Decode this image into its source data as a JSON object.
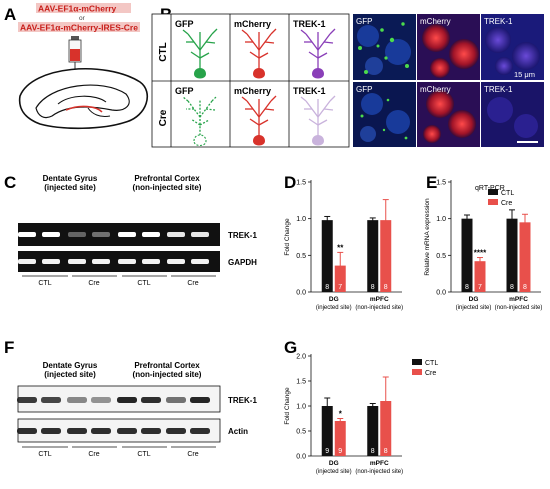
{
  "panels": {
    "A": {
      "letter": "A",
      "vector_ctl": "AAV-EF1α-mCherry",
      "or": "or",
      "vector_cre": "AAV-EF1α-mCherry-IRES-Cre"
    },
    "B": {
      "letter": "B",
      "rows": [
        "CTL",
        "Cre"
      ],
      "schematic_headers": [
        "GFP",
        "mCherry",
        "TREK-1"
      ],
      "image_headers": [
        "GFP",
        "mCherry",
        "TREK-1"
      ],
      "scale_bar": "15 μm",
      "colors": {
        "gfp": "#27a34a",
        "mcherry": "#d8322b",
        "trek": "#8a3fb8",
        "trek_faded": "#c9b3dc"
      }
    },
    "C": {
      "letter": "C",
      "group1": [
        "Dentate Gyrus",
        "(injected site)"
      ],
      "group2": [
        "Prefrontal Cortex",
        "(non-injected site)"
      ],
      "bands": [
        "TREK-1",
        "GAPDH"
      ],
      "lanes": [
        "CTL",
        "Cre",
        "CTL",
        "Cre"
      ]
    },
    "F": {
      "letter": "F",
      "group1": [
        "Dentate Gyrus",
        "(injected site)"
      ],
      "group2": [
        "Prefrontal Cortex",
        "(non-injected site)"
      ],
      "bands": [
        "TREK-1",
        "Actin"
      ],
      "lanes": [
        "CTL",
        "Cre",
        "CTL",
        "Cre"
      ]
    }
  },
  "chart_data": [
    {
      "id": "D",
      "type": "bar",
      "ylabel": "Fold Change",
      "ylim": [
        0,
        1.5
      ],
      "yticks": [
        "0.0",
        "0.5",
        "1.0",
        "1.5"
      ],
      "categories": [
        [
          "DG",
          "(injected site)"
        ],
        [
          "mPFC",
          "(non-injected site)"
        ]
      ],
      "series": [
        {
          "name": "CTL",
          "values": [
            0.98,
            0.98
          ],
          "errors": [
            0.05,
            0.03
          ],
          "n": [
            "8",
            "8"
          ],
          "color": "#111111"
        },
        {
          "name": "Cre",
          "values": [
            0.36,
            0.98
          ],
          "errors": [
            0.18,
            0.28
          ],
          "n": [
            "7",
            "8"
          ],
          "color": "#e8504b"
        }
      ],
      "significance": [
        {
          "text": "**",
          "category": 0,
          "series": 1
        }
      ],
      "legend": null
    },
    {
      "id": "E",
      "type": "bar",
      "ylabel": "Relative mRNA expression",
      "annotation": "qRT-PCR",
      "ylim": [
        0,
        1.5
      ],
      "yticks": [
        "0.0",
        "0.5",
        "1.0",
        "1.5"
      ],
      "categories": [
        [
          "DG",
          "(injected site)"
        ],
        [
          "mPFC",
          "(non-injected site)"
        ]
      ],
      "series": [
        {
          "name": "CTL",
          "values": [
            1.0,
            1.0
          ],
          "errors": [
            0.05,
            0.12
          ],
          "n": [
            "8",
            "8"
          ],
          "color": "#111111"
        },
        {
          "name": "Cre",
          "values": [
            0.42,
            0.95
          ],
          "errors": [
            0.05,
            0.11
          ],
          "n": [
            "7",
            "8"
          ],
          "color": "#e8504b"
        }
      ],
      "significance": [
        {
          "text": "****",
          "category": 0,
          "series": 1
        }
      ],
      "legend": "top-right"
    },
    {
      "id": "G",
      "type": "bar",
      "ylabel": "Fold Change",
      "ylim": [
        0,
        2.0
      ],
      "yticks": [
        "0.0",
        "0.5",
        "1.0",
        "1.5",
        "2.0"
      ],
      "categories": [
        [
          "DG",
          "(injected site)"
        ],
        [
          "mPFC",
          "(non-injected site)"
        ]
      ],
      "series": [
        {
          "name": "CTL",
          "values": [
            1.0,
            1.0
          ],
          "errors": [
            0.16,
            0.05
          ],
          "n": [
            "9",
            "8"
          ],
          "color": "#111111"
        },
        {
          "name": "Cre",
          "values": [
            0.7,
            1.1
          ],
          "errors": [
            0.05,
            0.48
          ],
          "n": [
            "9",
            "8"
          ],
          "color": "#e8504b"
        }
      ],
      "significance": [
        {
          "text": "*",
          "category": 0,
          "series": 1
        }
      ],
      "legend": "top-right"
    }
  ],
  "letters": {
    "D": "D",
    "E": "E",
    "G": "G"
  }
}
